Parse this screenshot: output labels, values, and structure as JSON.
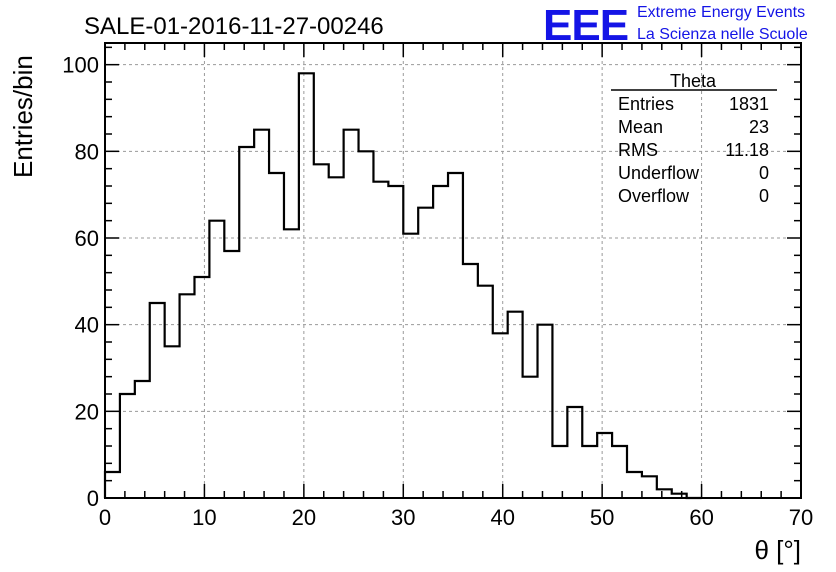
{
  "chart_data": {
    "type": "bar",
    "title": "SALE-01-2016-11-27-00246",
    "xlabel": "θ [°]",
    "ylabel": "Entries/bin",
    "xlim": [
      0,
      70
    ],
    "ylim": [
      0,
      105
    ],
    "bin_width": 1.5,
    "x_ticks": [
      0,
      10,
      20,
      30,
      40,
      50,
      60,
      70
    ],
    "y_ticks": [
      0,
      20,
      40,
      60,
      80,
      100
    ],
    "grid": true,
    "values": [
      6,
      24,
      27,
      45,
      35,
      47,
      51,
      64,
      57,
      81,
      85,
      75,
      62,
      98,
      77,
      74,
      85,
      80,
      73,
      72,
      61,
      67,
      72,
      75,
      54,
      49,
      38,
      43,
      28,
      40,
      12,
      21,
      12,
      15,
      12,
      6,
      5,
      2,
      1,
      0
    ]
  },
  "stats_box": {
    "title": "Theta",
    "rows": [
      {
        "label": "Entries",
        "value": "1831"
      },
      {
        "label": "Mean",
        "value": "23"
      },
      {
        "label": "RMS",
        "value": "11.18"
      },
      {
        "label": "Underflow",
        "value": "0"
      },
      {
        "label": "Overflow",
        "value": "0"
      }
    ]
  },
  "logo": {
    "letters": "EEE",
    "line1": "Extreme Energy Events",
    "line2": "La Scienza nelle Scuole",
    "color": "#1414e6"
  }
}
